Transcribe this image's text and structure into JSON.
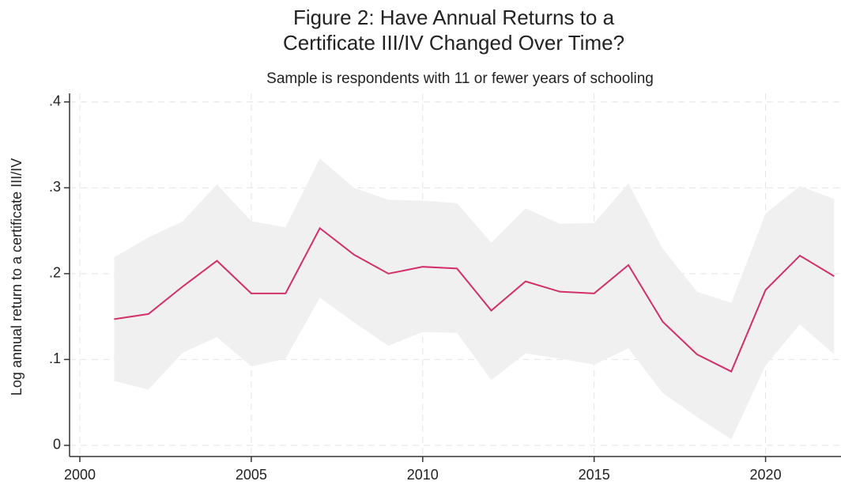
{
  "chart_data": {
    "type": "line",
    "title": [
      "Figure 2: Have Annual Returns to a",
      "Certificate III/IV Changed Over Time?"
    ],
    "subtitle": "Sample is respondents with 11 or fewer years of schooling",
    "y_label": "Log annual return to a certificate III/IV",
    "x": [
      2001,
      2002,
      2003,
      2004,
      2005,
      2006,
      2007,
      2008,
      2009,
      2010,
      2011,
      2012,
      2013,
      2014,
      2015,
      2016,
      2017,
      2018,
      2019,
      2020,
      2021,
      2022
    ],
    "values": [
      0.147,
      0.153,
      0.185,
      0.215,
      0.177,
      0.177,
      0.253,
      0.222,
      0.2,
      0.208,
      0.206,
      0.157,
      0.191,
      0.179,
      0.177,
      0.21,
      0.144,
      0.106,
      0.086,
      0.181,
      0.221,
      0.197
    ],
    "upper": [
      0.219,
      0.242,
      0.261,
      0.304,
      0.261,
      0.254,
      0.334,
      0.3,
      0.286,
      0.285,
      0.282,
      0.236,
      0.276,
      0.258,
      0.259,
      0.305,
      0.229,
      0.179,
      0.166,
      0.27,
      0.302,
      0.287
    ],
    "lower": [
      0.075,
      0.065,
      0.108,
      0.126,
      0.092,
      0.101,
      0.172,
      0.143,
      0.116,
      0.132,
      0.131,
      0.076,
      0.107,
      0.101,
      0.094,
      0.113,
      0.061,
      0.033,
      0.007,
      0.093,
      0.141,
      0.106
    ],
    "color": "#d1306a",
    "band_color": "#f0f0f0",
    "xlim": [
      1999.7,
      2022.2
    ],
    "xticks": [
      2000,
      2005,
      2010,
      2015,
      2020
    ],
    "ylim": [
      -0.013,
      0.41
    ],
    "yticks": [
      0,
      {
        "value": 0.1,
        "label": ".1"
      },
      {
        "value": 0.2,
        "label": ".2"
      },
      {
        "value": 0.3,
        "label": ".3"
      },
      {
        "value": 0.4,
        "label": ".4"
      }
    ],
    "grid": true
  }
}
